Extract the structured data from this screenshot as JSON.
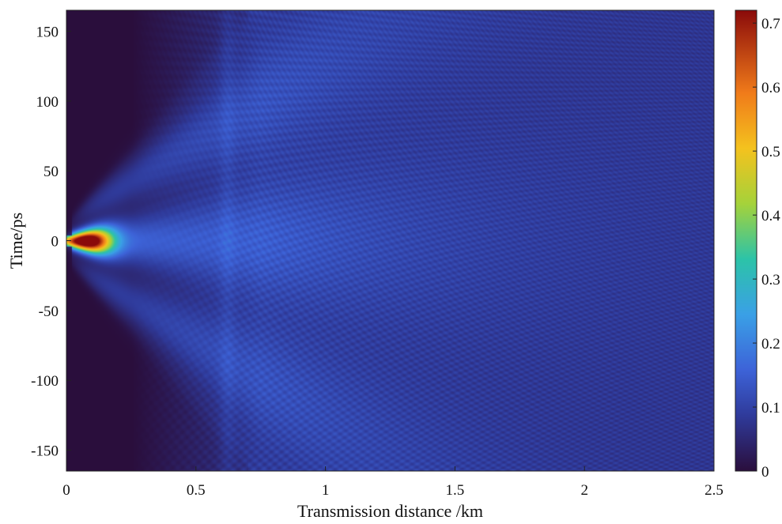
{
  "chart_data": {
    "type": "heatmap",
    "title": "",
    "xlabel": "Transmission distance /km",
    "ylabel": "Time/ps",
    "xlim": [
      0,
      2.5
    ],
    "ylim": [
      -165,
      165
    ],
    "x_ticks": [
      0,
      0.5,
      1,
      1.5,
      2,
      2.5
    ],
    "x_tick_labels": [
      "0",
      "0.5",
      "1",
      "1.5",
      "2",
      "2.5"
    ],
    "y_ticks": [
      150,
      100,
      50,
      0,
      -50,
      -100,
      -150
    ],
    "y_tick_labels": [
      "150",
      "100",
      "50",
      "0",
      "-50",
      "-100",
      "-150"
    ],
    "colorbar": {
      "colormap": "jet",
      "range": [
        0,
        0.72
      ],
      "ticks": [
        0,
        0.1,
        0.2,
        0.3,
        0.4,
        0.5,
        0.6,
        0.7
      ],
      "tick_labels": [
        "0",
        "0.1",
        "0.2",
        "0.3",
        "0.4",
        "0.5",
        "0.6",
        "0.7"
      ]
    },
    "description_features": {
      "peak_intensity_location": {
        "x": 0.05,
        "y": 0
      },
      "peak_intensity": 0.7,
      "background_intensity_far_field": 0.08,
      "dark_regions": "left side for |t| > ~10 ps near x < 0.2 km"
    }
  }
}
